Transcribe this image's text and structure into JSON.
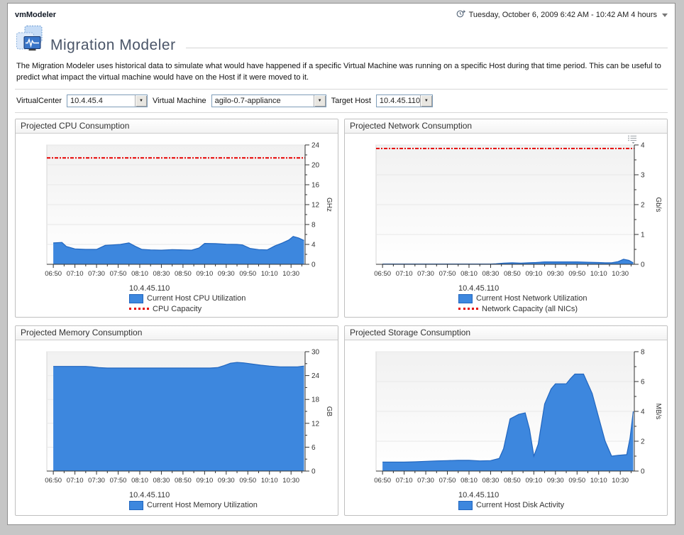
{
  "window": {
    "app_title": "vmModeler"
  },
  "header": {
    "timerange_label": "Tuesday, October 6, 2009 6:42 AM - 10:42 AM 4 hours"
  },
  "page": {
    "title": "Migration Modeler",
    "description": "The Migration Modeler uses historical data to simulate what would have happened if a specific Virtual Machine was running on a specific Host during that time period. This can be useful to predict what impact the virtual machine would have on the Host if it were moved to it."
  },
  "filters": [
    {
      "label": "VirtualCenter",
      "value": "10.4.45.4"
    },
    {
      "label": "Virtual Machine",
      "value": "agilo-0.7-appliance"
    },
    {
      "label": "Target Host",
      "value": "10.4.45.110"
    }
  ],
  "icons": {
    "timerange_icon": "clock-arrow",
    "dropdown_arrow": "▼",
    "chart_menu_icon": "list-menu"
  },
  "colors": {
    "area_fill": "#3d87de",
    "area_stroke": "#2166bf",
    "capacity_red": "#e60000",
    "title_text": "#4a5568"
  },
  "chart_data": [
    {
      "type": "area",
      "panel_title": "Projected CPU Consumption",
      "legend_group": "10.4.45.110",
      "ylabel": "GHz",
      "ylim": [
        0,
        24
      ],
      "y_major_step": 4,
      "y_minor_step": 2,
      "x_tick_labels": [
        "06:50",
        "07:10",
        "07:30",
        "07:50",
        "08:10",
        "08:30",
        "08:50",
        "09:10",
        "09:30",
        "09:50",
        "10:10",
        "10:30"
      ],
      "x": [
        0,
        8,
        12,
        20,
        30,
        40,
        48,
        55,
        62,
        70,
        76,
        82,
        90,
        100,
        110,
        120,
        128,
        135,
        140,
        150,
        160,
        170,
        175,
        182,
        190,
        198,
        205,
        212,
        218,
        222,
        227,
        232
      ],
      "series": [
        {
          "name": "Current Host CPU Utilization",
          "values": [
            4.3,
            4.4,
            3.6,
            3.1,
            3.0,
            3.0,
            3.8,
            3.9,
            4.0,
            4.3,
            3.6,
            3.0,
            2.9,
            2.85,
            2.95,
            2.9,
            2.85,
            3.3,
            4.2,
            4.15,
            4.05,
            4.0,
            3.9,
            3.2,
            2.95,
            2.9,
            3.7,
            4.3,
            4.9,
            5.6,
            5.3,
            4.8
          ]
        }
      ],
      "capacity": {
        "label": "CPU Capacity",
        "value": 21.4
      },
      "menu_icon": false
    },
    {
      "type": "area",
      "panel_title": "Projected Network Consumption",
      "legend_group": "10.4.45.110",
      "ylabel": "Gb/s",
      "ylim": [
        0,
        4
      ],
      "y_major_step": 1,
      "y_minor_step": 0.5,
      "x_tick_labels": [
        "06:50",
        "07:10",
        "07:30",
        "07:50",
        "08:10",
        "08:30",
        "08:50",
        "09:10",
        "09:30",
        "09:50",
        "10:10",
        "10:30"
      ],
      "x": [
        0,
        20,
        40,
        60,
        80,
        100,
        105,
        112,
        120,
        128,
        135,
        142,
        150,
        160,
        170,
        180,
        190,
        200,
        206,
        212,
        218,
        223,
        228,
        232
      ],
      "series": [
        {
          "name": "Current Host Network Utilization",
          "values": [
            0.01,
            0.01,
            0.01,
            0.01,
            0.01,
            0.01,
            0.02,
            0.04,
            0.05,
            0.04,
            0.05,
            0.06,
            0.08,
            0.08,
            0.08,
            0.08,
            0.07,
            0.06,
            0.05,
            0.05,
            0.09,
            0.17,
            0.13,
            0.05
          ]
        }
      ],
      "capacity": {
        "label": "Network Capacity (all NICs)",
        "value": 3.88
      },
      "menu_icon": true
    },
    {
      "type": "area",
      "panel_title": "Projected Memory Consumption",
      "legend_group": "10.4.45.110",
      "ylabel": "GB",
      "ylim": [
        0,
        30
      ],
      "y_major_step": 6,
      "y_minor_step": 3,
      "x_tick_labels": [
        "06:50",
        "07:10",
        "07:30",
        "07:50",
        "08:10",
        "08:30",
        "08:50",
        "09:10",
        "09:30",
        "09:50",
        "10:10",
        "10:30"
      ],
      "x": [
        0,
        10,
        20,
        30,
        36,
        42,
        50,
        70,
        90,
        110,
        130,
        145,
        152,
        158,
        164,
        170,
        176,
        184,
        192,
        200,
        210,
        220,
        226,
        232
      ],
      "series": [
        {
          "name": "Current Host Memory Utilization",
          "values": [
            26.3,
            26.3,
            26.3,
            26.3,
            26.2,
            26.0,
            25.9,
            25.9,
            25.9,
            25.9,
            25.9,
            25.9,
            26.0,
            26.5,
            27.1,
            27.3,
            27.2,
            26.9,
            26.6,
            26.4,
            26.2,
            26.2,
            26.2,
            26.4
          ]
        }
      ],
      "capacity": null,
      "menu_icon": false
    },
    {
      "type": "area",
      "panel_title": "Projected Storage Consumption",
      "legend_group": "10.4.45.110",
      "ylabel": "MB/s",
      "ylim": [
        0,
        8
      ],
      "y_major_step": 2,
      "y_minor_step": 1,
      "x_tick_labels": [
        "06:50",
        "07:10",
        "07:30",
        "07:50",
        "08:10",
        "08:30",
        "08:50",
        "09:10",
        "09:30",
        "09:50",
        "10:10",
        "10:30"
      ],
      "x": [
        0,
        10,
        20,
        30,
        40,
        50,
        60,
        70,
        80,
        90,
        100,
        108,
        112,
        118,
        126,
        132,
        136,
        140,
        144,
        150,
        156,
        160,
        170,
        174,
        178,
        186,
        194,
        200,
        206,
        212,
        218,
        226,
        229,
        232
      ],
      "series": [
        {
          "name": "Current Host Disk Activity",
          "values": [
            0.6,
            0.6,
            0.6,
            0.62,
            0.65,
            0.68,
            0.7,
            0.72,
            0.72,
            0.68,
            0.7,
            0.85,
            1.5,
            3.5,
            3.8,
            3.9,
            2.8,
            1.0,
            1.8,
            4.5,
            5.5,
            5.85,
            5.85,
            6.2,
            6.5,
            6.5,
            5.2,
            3.6,
            2.0,
            1.0,
            1.05,
            1.1,
            2.2,
            4.0
          ]
        }
      ],
      "capacity": null,
      "menu_icon": false
    }
  ]
}
